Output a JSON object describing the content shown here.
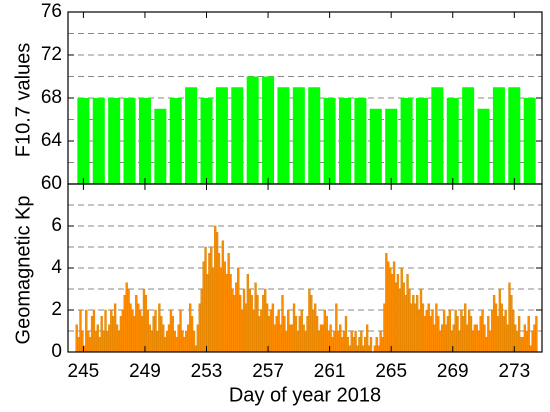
{
  "chart_data": [
    {
      "type": "bar",
      "ylabel": "F10.7 values",
      "color": "#00ff00",
      "x": [
        245,
        246,
        247,
        248,
        249,
        250,
        251,
        252,
        253,
        254,
        255,
        256,
        257,
        258,
        259,
        260,
        261,
        262,
        263,
        264,
        265,
        266,
        267,
        268,
        269,
        270,
        271,
        272,
        273,
        274
      ],
      "values": [
        68,
        68,
        68,
        68,
        68,
        67,
        68,
        69,
        68,
        69,
        69,
        70,
        70,
        69,
        69,
        69,
        68,
        68,
        68,
        67,
        67,
        68,
        68,
        69,
        68,
        69,
        67,
        69,
        69,
        68
      ],
      "ylim": [
        60,
        76
      ],
      "yticks": [
        60,
        64,
        68,
        72,
        76
      ],
      "grid": [
        62,
        64,
        66,
        68,
        70,
        72,
        74
      ]
    },
    {
      "type": "grouped-bar",
      "ylabel": "Geomagnetic Kp",
      "xlabel": "Day of year 2018",
      "color": "#ff8c00",
      "x": [
        245,
        246,
        247,
        248,
        249,
        250,
        251,
        252,
        253,
        254,
        255,
        256,
        257,
        258,
        259,
        260,
        261,
        262,
        263,
        264,
        265,
        266,
        267,
        268,
        269,
        270,
        271,
        272,
        273,
        274
      ],
      "values": [
        [
          1.3,
          0.7,
          2,
          1,
          0.3,
          2,
          1,
          0.7
        ],
        [
          1.7,
          2,
          1,
          1.3,
          0.7,
          1.7,
          1,
          2
        ],
        [
          1,
          1.3,
          2,
          1.7,
          2.3,
          1.3,
          1,
          1.7
        ],
        [
          2,
          2.7,
          3.3,
          3,
          2.3,
          2,
          1.7,
          2.7
        ],
        [
          2.3,
          2,
          1.7,
          3,
          2.7,
          2,
          1.3,
          1
        ],
        [
          1.7,
          2,
          1,
          2.3,
          1.7,
          1.3,
          0.7,
          1
        ],
        [
          1.3,
          2,
          1.7,
          1,
          0.7,
          1.3,
          2,
          1
        ],
        [
          0.7,
          1,
          1.3,
          2.3,
          1.7,
          1,
          0.3,
          1.3
        ],
        [
          2.3,
          3,
          4.3,
          5,
          3.7,
          4.7,
          5,
          4
        ],
        [
          6,
          5.7,
          4.7,
          4,
          5.3,
          4.3,
          3.7,
          4.7
        ],
        [
          3.7,
          3,
          2.7,
          3.3,
          4,
          2.7,
          2,
          3
        ],
        [
          2.3,
          3.7,
          3,
          2.7,
          2,
          3.3,
          2.7,
          1.7
        ],
        [
          2,
          2.7,
          3,
          2.3,
          1.7,
          2,
          2.3,
          1.3
        ],
        [
          1.7,
          2,
          1.3,
          2.7,
          1.7,
          1,
          2,
          1.3
        ],
        [
          1.3,
          2.3,
          1.7,
          1,
          1.7,
          2,
          1.3,
          1
        ],
        [
          1.7,
          3,
          2.7,
          2,
          2.3,
          1.7,
          1,
          1.3
        ],
        [
          1.3,
          2,
          1.7,
          1,
          1.3,
          0.7,
          1,
          2.3
        ],
        [
          1,
          1.3,
          0.7,
          1,
          1.7,
          0.7,
          0.3,
          1
        ],
        [
          0.7,
          1,
          0.3,
          0.7,
          1,
          0.3,
          0.7,
          1.3
        ],
        [
          0.3,
          0.7,
          0,
          0.3,
          0.7,
          0.3,
          1,
          0.7
        ],
        [
          2.3,
          4.7,
          4.3,
          4,
          3.7,
          4.3,
          3.3,
          3.7
        ],
        [
          3,
          4,
          3.3,
          2.7,
          3.7,
          3,
          2.3,
          2.7
        ],
        [
          2.3,
          2.7,
          2,
          3,
          2.3,
          1.7,
          2,
          2.3
        ],
        [
          1.7,
          2,
          1.3,
          2.3,
          1.7,
          1,
          1.3,
          2
        ],
        [
          1.3,
          1.7,
          2,
          1,
          1.3,
          2,
          1.7,
          1
        ],
        [
          2,
          1.7,
          2.3,
          1.3,
          2,
          1.7,
          1,
          1.3
        ],
        [
          1.3,
          1,
          1.7,
          2,
          1.3,
          0.7,
          1.7,
          1
        ],
        [
          2,
          2.7,
          2.3,
          1.7,
          3,
          2.3,
          1.7,
          2
        ],
        [
          1.3,
          3.3,
          2.7,
          2,
          1.3,
          1,
          1.7,
          0.7
        ],
        [
          0.7,
          1.3,
          1,
          1.7,
          0.3,
          1,
          1.3,
          1.7
        ]
      ],
      "ylim": [
        0,
        8
      ],
      "yticks": [
        0,
        2,
        4,
        6
      ],
      "grid": [
        1,
        2,
        3,
        4,
        5,
        6,
        7
      ],
      "xlim": [
        244,
        274.8
      ],
      "xticks": [
        245,
        249,
        253,
        257,
        261,
        265,
        269,
        273
      ]
    }
  ]
}
